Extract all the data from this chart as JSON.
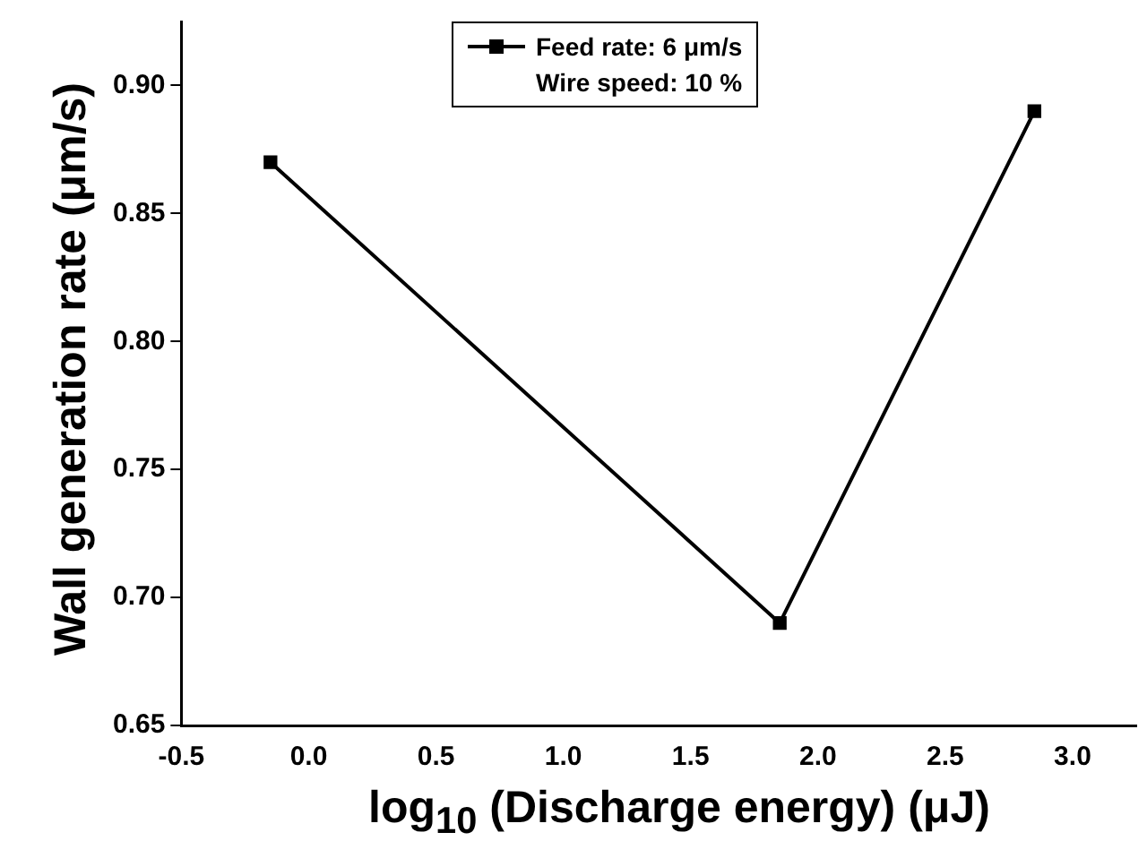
{
  "chart_data": {
    "type": "line",
    "xlabel": "log$_{10}$ (Discharge energy) (μJ)",
    "ylabel": "Wall generation rate (μm/s)",
    "x": [
      -0.15,
      1.85,
      2.85
    ],
    "series": [
      {
        "name": "Feed rate: 6 μm/s",
        "color": "#000000",
        "values": [
          0.87,
          0.69,
          0.89
        ]
      }
    ],
    "annotations": [
      "Wire speed: 10 %"
    ],
    "xlim": [
      -0.5,
      3.25
    ],
    "xticks": [
      -0.5,
      {
        "value": 0,
        "label": "0.0"
      },
      0.5,
      {
        "value": 1,
        "label": "1.0"
      },
      1.5,
      {
        "value": 2,
        "label": "2.0"
      },
      2.5,
      {
        "value": 3,
        "label": "3.0"
      }
    ],
    "ylim": [
      0.65,
      0.925
    ],
    "yticks": [
      0.65,
      {
        "value": 0.7,
        "label": "0.70"
      },
      0.75,
      {
        "value": 0.8,
        "label": "0.80"
      },
      0.85,
      {
        "value": 0.9,
        "label": "0.90"
      }
    ],
    "marker": "square",
    "line_style": "solid",
    "legend": "top",
    "grid": false
  }
}
